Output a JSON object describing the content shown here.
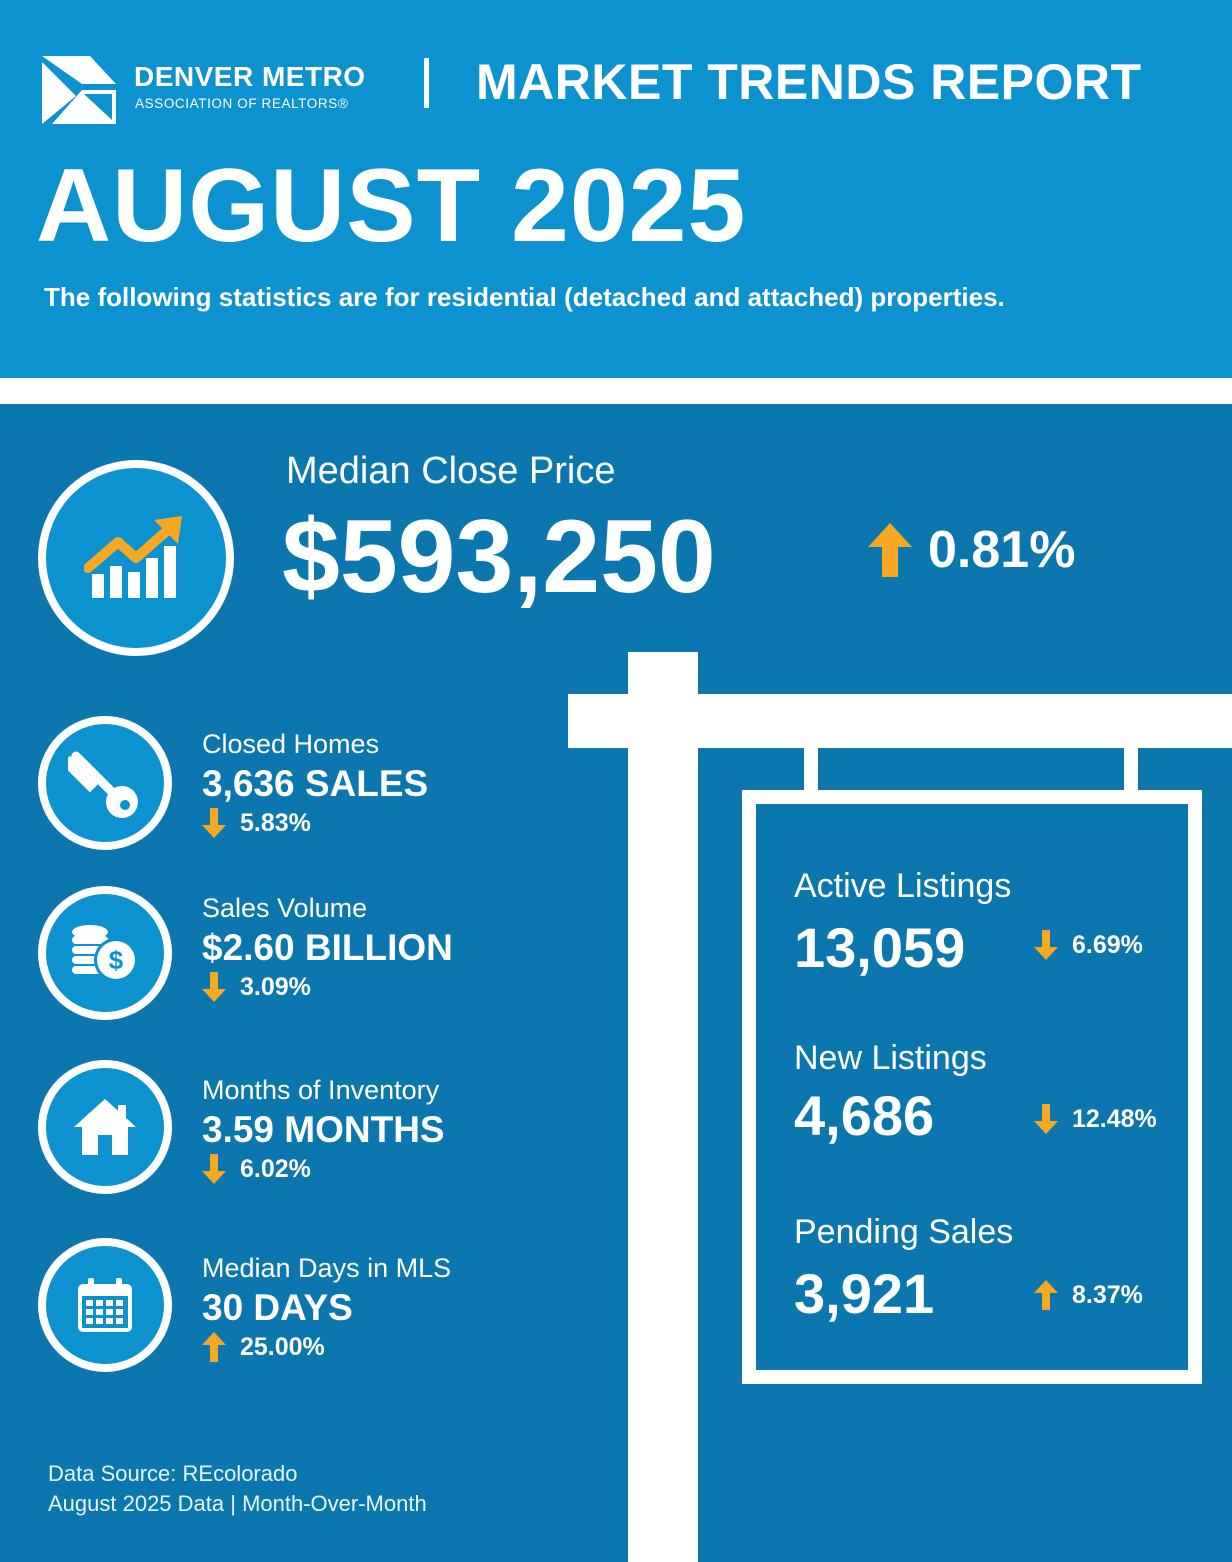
{
  "org": {
    "name": "DENVER METRO",
    "subname": "ASSOCIATION OF REALTORS®",
    "logo_icon": "dmar-logo-icon"
  },
  "header": {
    "report_title": "MARKET TRENDS REPORT",
    "month": "AUGUST 2025",
    "subtitle": "The following statistics are for residential (detached and attached) properties."
  },
  "colors": {
    "header_bg": "#0d92d0",
    "body_bg": "#0b77ae",
    "arrow": "#f7a823",
    "text": "#ffffff"
  },
  "median_close_price": {
    "label": "Median Close Price",
    "value": "$593,250",
    "direction": "up",
    "change": "0.81%",
    "icon": "rising-chart-icon"
  },
  "stats": [
    {
      "label": "Closed Homes",
      "value": "3,636 SALES",
      "direction": "down",
      "change": "5.83%",
      "icon": "key-icon"
    },
    {
      "label": "Sales Volume",
      "value": "$2.60 BILLION",
      "direction": "down",
      "change": "3.09%",
      "icon": "coins-dollar-icon"
    },
    {
      "label": "Months of Inventory",
      "value": "3.59 MONTHS",
      "direction": "down",
      "change": "6.02%",
      "icon": "house-icon"
    },
    {
      "label": "Median Days in MLS",
      "value": "30 DAYS",
      "direction": "up",
      "change": "25.00%",
      "icon": "calendar-icon"
    }
  ],
  "sign": {
    "items": [
      {
        "label": "Active Listings",
        "value": "13,059",
        "direction": "down",
        "change": "6.69%"
      },
      {
        "label": "New Listings",
        "value": "4,686",
        "direction": "down",
        "change": "12.48%"
      },
      {
        "label": "Pending Sales",
        "value": "3,921",
        "direction": "up",
        "change": "8.37%"
      }
    ]
  },
  "footer": {
    "source": "Data Source: REcolorado",
    "period": "August 2025 Data | Month-Over-Month"
  }
}
